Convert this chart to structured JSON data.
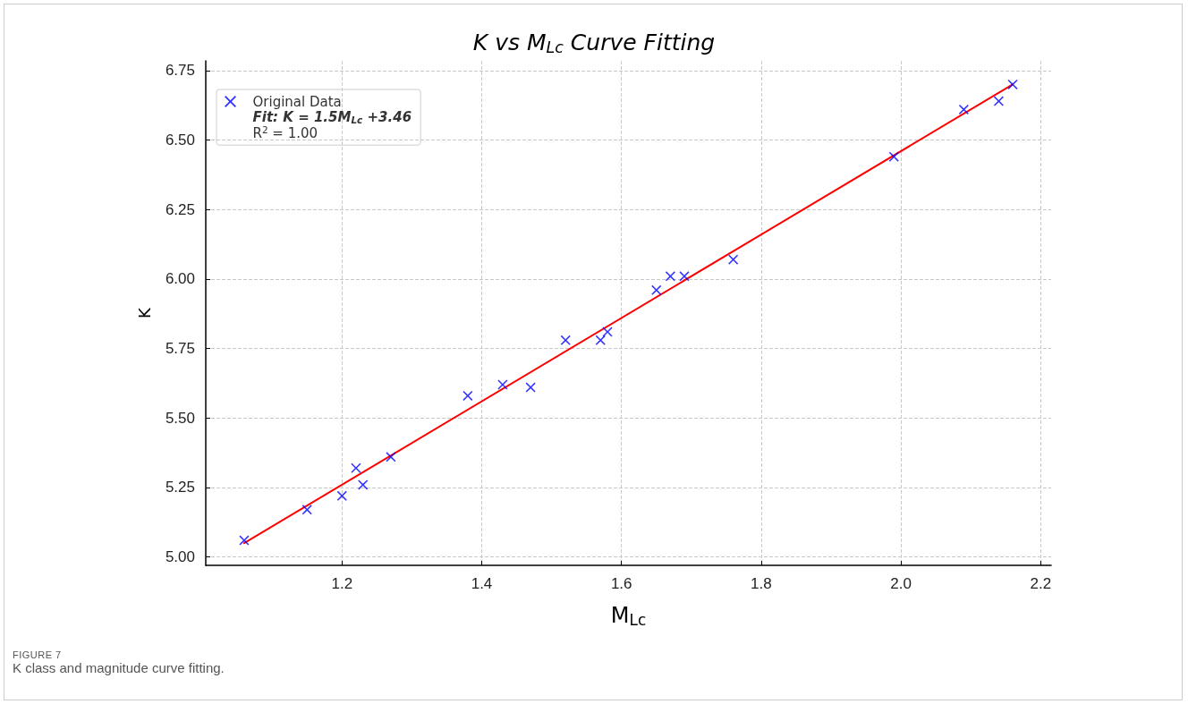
{
  "chart_data": {
    "type": "scatter",
    "title": "K vs M$_{Lc}$ Curve Fitting",
    "xlabel": "M$_{Lc}$",
    "ylabel": "K",
    "series": [
      {
        "name": "Original Data",
        "color": "#0000ff",
        "marker": "cross",
        "x": [
          1.06,
          1.15,
          1.2,
          1.22,
          1.23,
          1.27,
          1.38,
          1.43,
          1.47,
          1.52,
          1.57,
          1.58,
          1.65,
          1.67,
          1.69,
          1.76,
          1.99,
          2.09,
          2.14,
          2.16
        ],
        "values": [
          5.06,
          5.17,
          5.22,
          5.32,
          5.26,
          5.36,
          5.58,
          5.62,
          5.61,
          5.78,
          5.78,
          5.81,
          5.96,
          6.01,
          6.01,
          6.07,
          6.44,
          6.61,
          6.64,
          6.7
        ]
      },
      {
        "name": "Fit: K = 1.5M$_{Lc}$ +3.46\nR$^{2}$ = 1.00",
        "type": "line",
        "color": "#ff0000",
        "marker": "none",
        "line_style": "solid",
        "x": [
          1.06,
          2.16
        ],
        "values": [
          5.05,
          6.7
        ]
      }
    ],
    "xlim": [
      1.005,
      2.215
    ],
    "xticks": [
      1.2,
      1.4,
      1.6,
      1.8,
      {
        "value": 2,
        "label": "2.0"
      },
      {
        "value": 2.2,
        "label": "2.2"
      }
    ],
    "ylim": [
      4.97,
      6.785
    ],
    "yticks": [
      {
        "value": 5,
        "label": "5.00"
      },
      {
        "value": 5.25,
        "label": "5.25"
      },
      {
        "value": 5.5,
        "label": "5.50"
      },
      {
        "value": 5.75,
        "label": "5.75"
      },
      {
        "value": 6,
        "label": "6.00"
      },
      {
        "value": 6.25,
        "label": "6.25"
      },
      {
        "value": 6.5,
        "label": "6.50"
      },
      {
        "value": 6.75,
        "label": "6.75"
      }
    ],
    "grid": true,
    "legend": "top left",
    "annotations": [
      "FIGURE 7",
      "K class and magnitude curve fitting."
    ]
  }
}
